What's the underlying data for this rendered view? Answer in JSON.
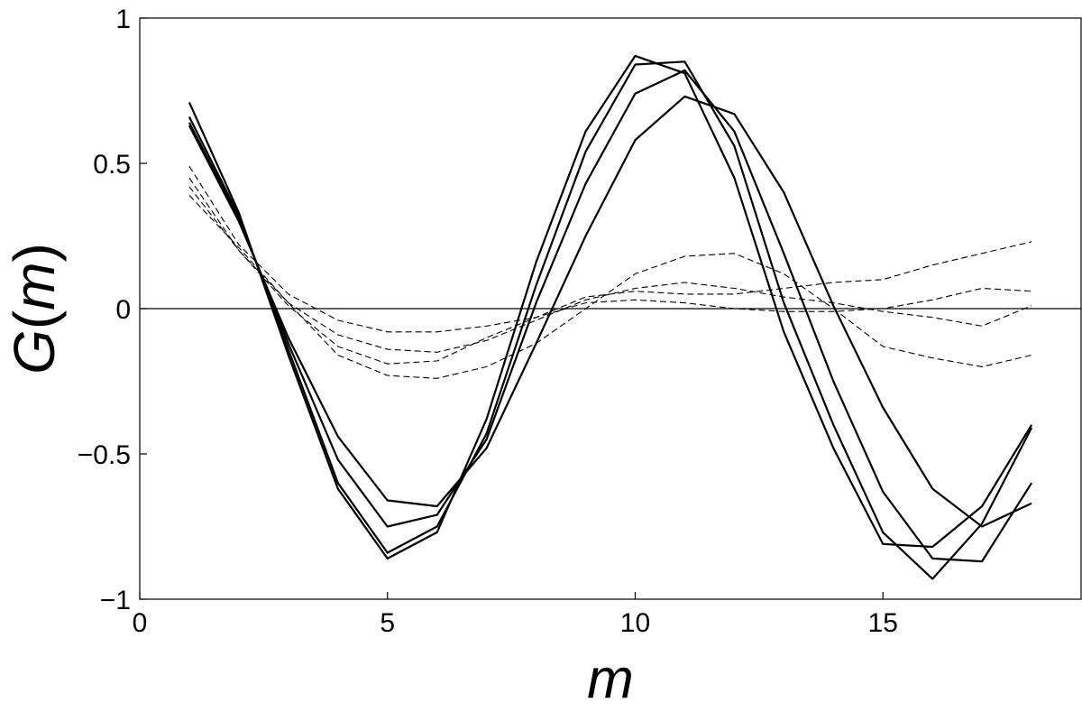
{
  "chart_data": {
    "type": "line",
    "title": "",
    "xlabel": "m",
    "ylabel_parts": [
      "G",
      "(",
      "m",
      ")"
    ],
    "xlim": [
      0,
      19
    ],
    "ylim": [
      -1,
      1
    ],
    "xticks": [
      0,
      5,
      10,
      15
    ],
    "xtick_labels": [
      "0",
      "5",
      "10",
      "15"
    ],
    "yticks": [
      -1,
      -0.5,
      0,
      0.5,
      1
    ],
    "ytick_labels": [
      "−1",
      "−0.5",
      "0",
      "0.5",
      "1"
    ],
    "grid": false,
    "reference_line_y": 0,
    "x": [
      1,
      2,
      3,
      4,
      5,
      6,
      7,
      8,
      9,
      10,
      11,
      12,
      13,
      14,
      15,
      16,
      17,
      18
    ],
    "series": [
      {
        "style": "solid",
        "values": [
          0.71,
          0.33,
          -0.16,
          -0.62,
          -0.86,
          -0.77,
          -0.38,
          0.16,
          0.61,
          0.87,
          0.81,
          0.45,
          -0.08,
          -0.48,
          -0.81,
          -0.82,
          -0.68,
          -0.4
        ]
      },
      {
        "style": "solid",
        "values": [
          0.66,
          0.32,
          -0.14,
          -0.6,
          -0.84,
          -0.75,
          -0.43,
          0.08,
          0.54,
          0.84,
          0.85,
          0.56,
          0.02,
          -0.4,
          -0.77,
          -0.93,
          -0.74,
          -0.41
        ]
      },
      {
        "style": "solid",
        "values": [
          0.64,
          0.31,
          -0.12,
          -0.52,
          -0.75,
          -0.71,
          -0.45,
          0.02,
          0.43,
          0.74,
          0.82,
          0.61,
          0.19,
          -0.25,
          -0.63,
          -0.86,
          -0.87,
          -0.6
        ]
      },
      {
        "style": "solid",
        "values": [
          0.63,
          0.3,
          -0.1,
          -0.44,
          -0.66,
          -0.68,
          -0.48,
          -0.12,
          0.25,
          0.58,
          0.73,
          0.67,
          0.4,
          0.01,
          -0.34,
          -0.62,
          -0.75,
          -0.67
        ]
      },
      {
        "style": "dashed",
        "values": [
          0.49,
          0.22,
          0.05,
          -0.04,
          -0.08,
          -0.08,
          -0.06,
          -0.03,
          0.02,
          0.03,
          0.02,
          0.0,
          -0.01,
          -0.01,
          0.0,
          0.03,
          0.07,
          0.06
        ]
      },
      {
        "style": "dashed",
        "values": [
          0.45,
          0.2,
          0.02,
          -0.09,
          -0.14,
          -0.15,
          -0.11,
          -0.04,
          0.03,
          0.07,
          0.09,
          0.07,
          0.04,
          0.02,
          -0.01,
          -0.03,
          -0.06,
          0.01
        ]
      },
      {
        "style": "dashed",
        "values": [
          0.42,
          0.2,
          0.01,
          -0.13,
          -0.19,
          -0.18,
          -0.1,
          -0.03,
          0.04,
          0.06,
          0.05,
          0.05,
          0.07,
          0.09,
          0.1,
          0.15,
          0.19,
          0.23
        ]
      },
      {
        "style": "dashed",
        "values": [
          0.39,
          0.21,
          0.02,
          -0.16,
          -0.23,
          -0.24,
          -0.2,
          -0.12,
          0.0,
          0.12,
          0.18,
          0.19,
          0.12,
          0.0,
          -0.13,
          -0.17,
          -0.2,
          -0.16
        ]
      }
    ]
  }
}
